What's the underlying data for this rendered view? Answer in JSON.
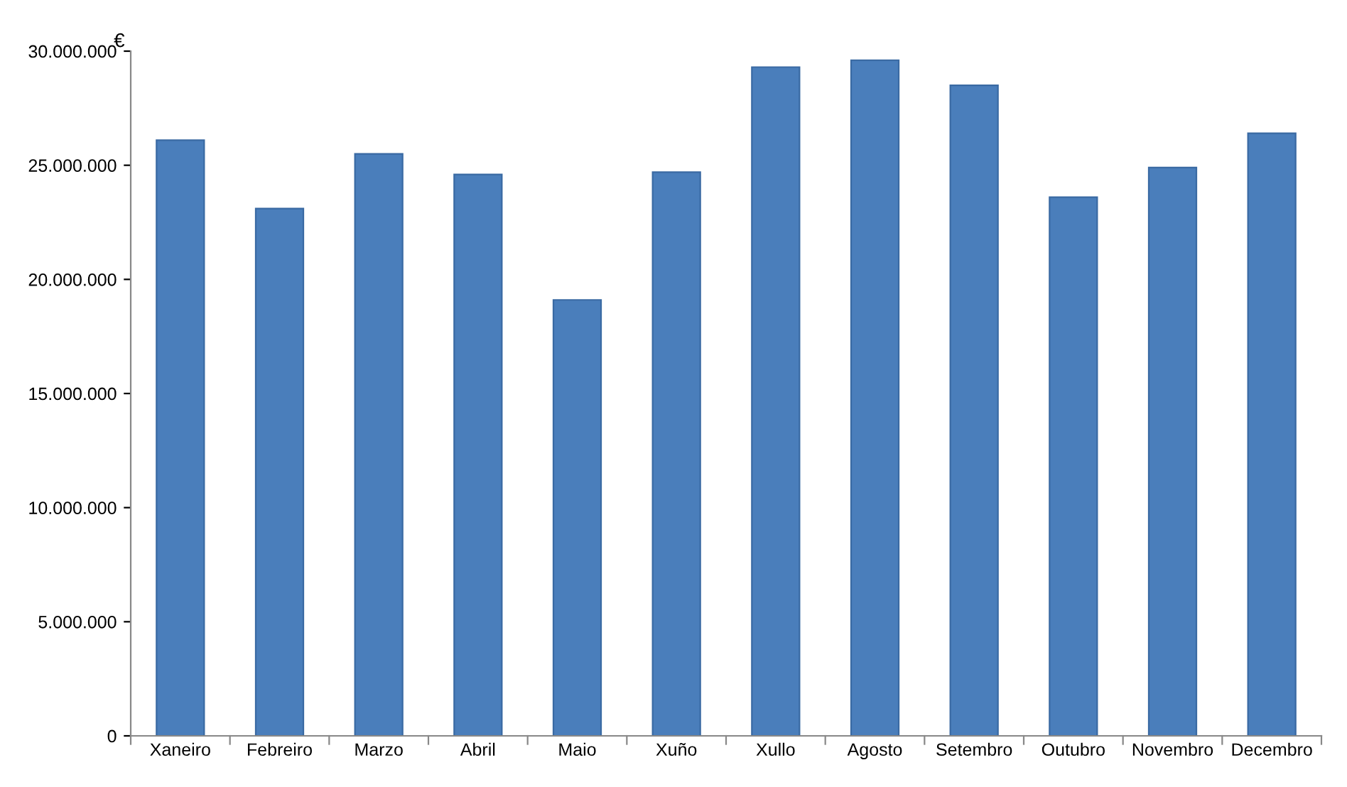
{
  "chart_data": {
    "type": "bar",
    "ylabel": "€",
    "categories": [
      "Xaneiro",
      "Febreiro",
      "Marzo",
      "Abril",
      "Maio",
      "Xuño",
      "Xullo",
      "Agosto",
      "Setembro",
      "Outubro",
      "Novembro",
      "Decembro"
    ],
    "values": [
      26100000,
      23100000,
      25500000,
      24600000,
      19100000,
      24700000,
      29300000,
      29600000,
      28500000,
      23600000,
      24900000,
      26400000
    ],
    "color": "#4a7ebb",
    "ylim": [
      0,
      30000000
    ],
    "yticks": [
      {
        "value": 0,
        "label": "0"
      },
      {
        "value": 5000000,
        "label": "5.000.000"
      },
      {
        "value": 10000000,
        "label": "10.000.000"
      },
      {
        "value": 15000000,
        "label": "15.000.000"
      },
      {
        "value": 20000000,
        "label": "20.000.000"
      },
      {
        "value": 25000000,
        "label": "25.000.000"
      },
      {
        "value": 30000000,
        "label": "30.000.000"
      }
    ],
    "grid": false,
    "legend": false
  }
}
